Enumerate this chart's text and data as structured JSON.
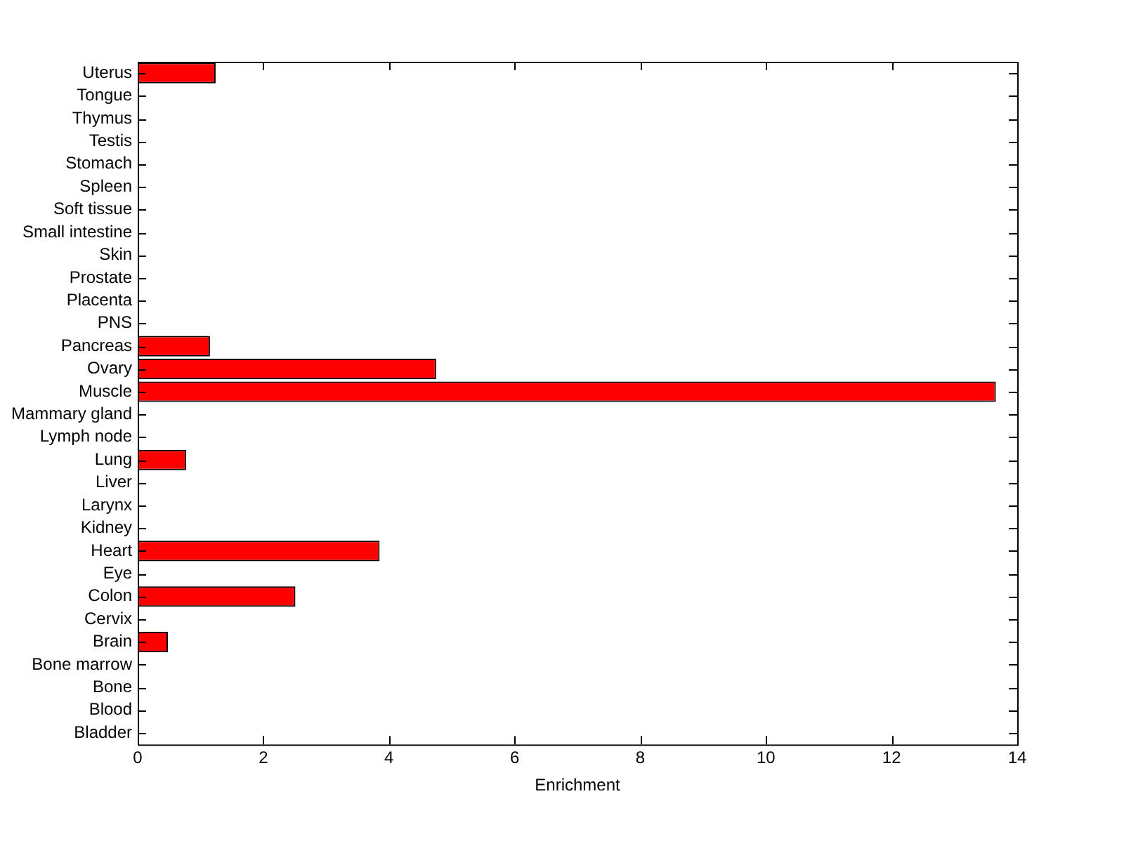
{
  "chart_data": {
    "type": "bar",
    "orientation": "horizontal",
    "xlabel": "Enrichment",
    "categories": [
      "Uterus",
      "Tongue",
      "Thymus",
      "Testis",
      "Stomach",
      "Spleen",
      "Soft tissue",
      "Small intestine",
      "Skin",
      "Prostate",
      "Placenta",
      "PNS",
      "Pancreas",
      "Ovary",
      "Muscle",
      "Mammary gland",
      "Lymph node",
      "Lung",
      "Liver",
      "Larynx",
      "Kidney",
      "Heart",
      "Eye",
      "Colon",
      "Cervix",
      "Brain",
      "Bone marrow",
      "Bone",
      "Blood",
      "Bladder"
    ],
    "values": [
      1.24,
      0,
      0,
      0,
      0,
      0,
      0,
      0,
      0,
      0,
      0,
      0,
      1.15,
      4.75,
      13.66,
      0,
      0,
      0.77,
      0,
      0,
      0,
      3.85,
      0,
      2.51,
      0,
      0.48,
      0,
      0,
      0,
      0
    ],
    "color": "#ff0000",
    "xlim": [
      0,
      14
    ],
    "xticks": [
      0,
      2,
      4,
      6,
      8,
      10,
      12,
      14
    ],
    "grid": false,
    "legend": false
  }
}
